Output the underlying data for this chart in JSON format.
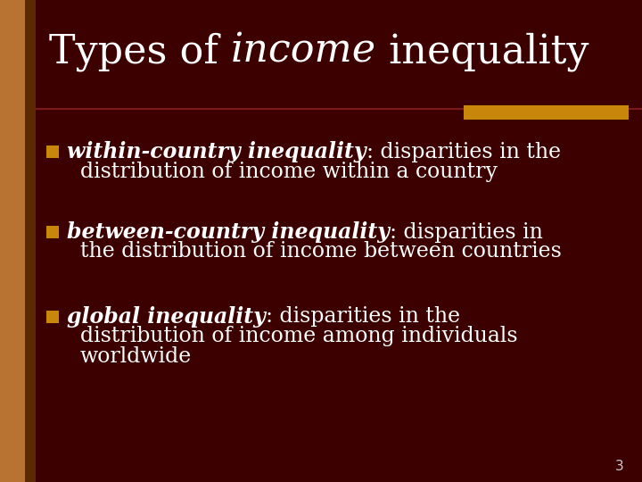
{
  "background_color": "#3d0000",
  "title_color": "#ffffff",
  "title_fontsize": 32,
  "separator_line_color": "#7a1a1a",
  "separator_bar_color": "#c8860a",
  "left_bar_color": "#b87333",
  "left_bar_dark_color": "#5c2a00",
  "bullet_color": "#c8860a",
  "bullet_items": [
    {
      "bold_italic": "within-country inequality",
      "rest_line1": ": disparities in the",
      "rest_line2": "distribution of income within a country"
    },
    {
      "bold_italic": "between-country inequality",
      "rest_line1": ": disparities in",
      "rest_line2": "the distribution of income between countries"
    },
    {
      "bold_italic": "global inequality",
      "rest_line1": ": disparities in the",
      "rest_line2": "distribution of income among individuals",
      "rest_line3": "worldwide"
    }
  ],
  "text_color": "#ffffff",
  "body_fontsize": 17,
  "page_number": "3",
  "page_number_color": "#cccccc",
  "page_number_fontsize": 11
}
